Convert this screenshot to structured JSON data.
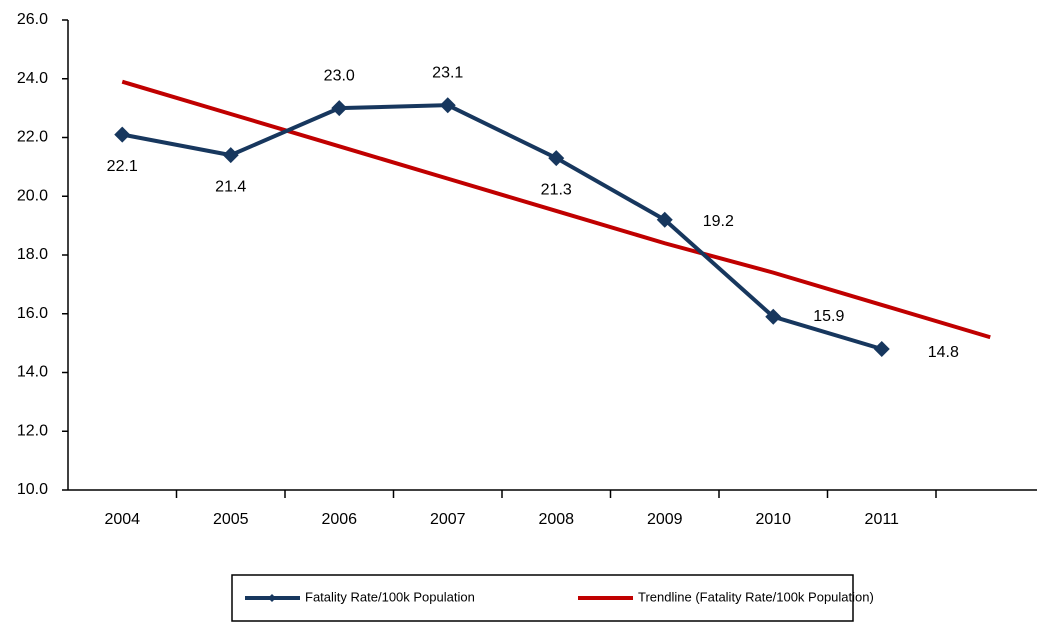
{
  "chart_data": {
    "type": "line",
    "categories": [
      "2004",
      "2005",
      "2006",
      "2007",
      "2008",
      "2009",
      "2010",
      "2011",
      null
    ],
    "series": [
      {
        "name": "Fatality Rate/100k Population",
        "color": "#17375e",
        "marker": "diamond",
        "values": [
          22.1,
          21.4,
          23.0,
          23.1,
          21.3,
          19.2,
          15.9,
          14.8,
          null
        ],
        "value_labels": [
          "22.1",
          "21.4",
          "23.0",
          "23.1",
          "21.3",
          "19.2",
          "15.9",
          "14.8",
          null
        ]
      },
      {
        "name": "Trendline (Fatality Rate/100k Population)",
        "color": "#c00000",
        "values": [
          23.9,
          22.8,
          21.7,
          20.6,
          19.5,
          18.4,
          17.4,
          16.3,
          15.2
        ]
      }
    ],
    "ylim": [
      10,
      26
    ],
    "yticks": [
      {
        "value": 10,
        "label": "10.0"
      },
      {
        "value": 12,
        "label": "12.0"
      },
      {
        "value": 14,
        "label": "14.0"
      },
      {
        "value": 16,
        "label": "16.0"
      },
      {
        "value": 18,
        "label": "18.0"
      },
      {
        "value": 20,
        "label": "20.0"
      },
      {
        "value": 22,
        "label": "22.0"
      },
      {
        "value": 24,
        "label": "24.0"
      },
      {
        "value": 26,
        "label": "26.0"
      }
    ],
    "grid": false,
    "legend": "bottom"
  }
}
